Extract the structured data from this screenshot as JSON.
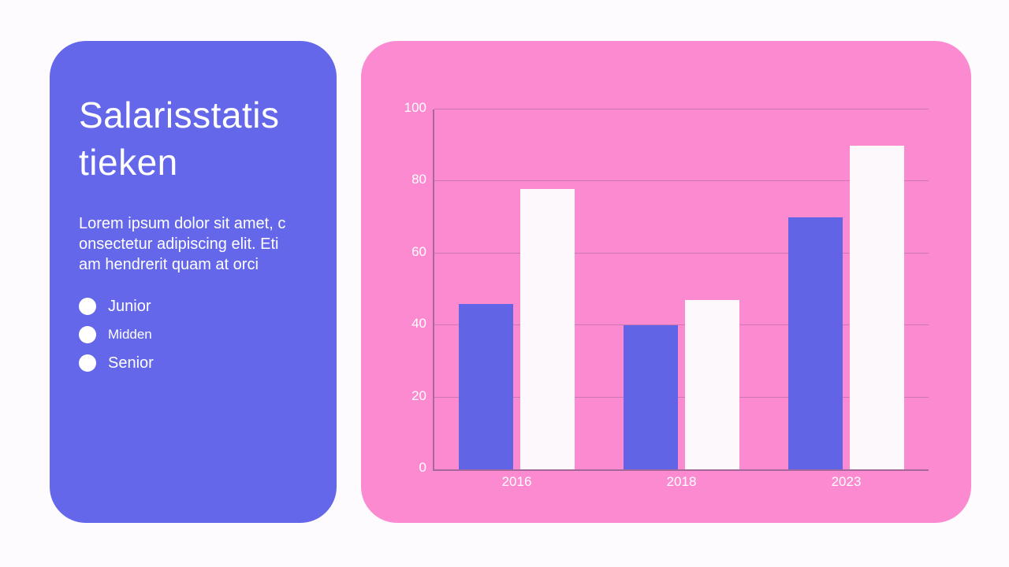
{
  "slide": {
    "background_color": "#fdfbfe"
  },
  "left_card": {
    "title": "Salarisstatistieken",
    "title_lines": [
      "Salarisstatis",
      "tieken"
    ],
    "description_lines": [
      "Lorem ipsum dolor sit amet, c",
      "onsectetur adipiscing elit. Eti",
      "am hendrerit quam at orci"
    ],
    "legend": [
      {
        "label": "Junior",
        "marker_color": "#ffffff"
      },
      {
        "label": "Midden",
        "marker_color": "#ffffff"
      },
      {
        "label": "Senior",
        "marker_color": "#ffffff"
      }
    ]
  },
  "chart_data": {
    "type": "bar",
    "categories": [
      "2016",
      "2018",
      "2023"
    ],
    "series": [
      {
        "name": "Junior",
        "color": "#6165e5",
        "values": [
          46,
          40,
          70
        ]
      },
      {
        "name": "Senior",
        "color": "#fdf8fc",
        "values": [
          78,
          47,
          90
        ]
      }
    ],
    "title": "",
    "xlabel": "",
    "ylabel": "",
    "ylim": [
      0,
      100
    ],
    "yticks": [
      0,
      20,
      40,
      60,
      80,
      100
    ],
    "grid": true,
    "legend_position": "left-card"
  },
  "colors": {
    "background": "#fdfbfe",
    "purple_card": "#6467e9",
    "pink_card": "#fb8ad1",
    "bar_junior": "#6165e5",
    "bar_senior": "#fdf8fc",
    "text": "#ffffff",
    "gridline": "rgba(96,74,112,0.30)",
    "axis": "rgba(96,74,112,0.55)"
  }
}
